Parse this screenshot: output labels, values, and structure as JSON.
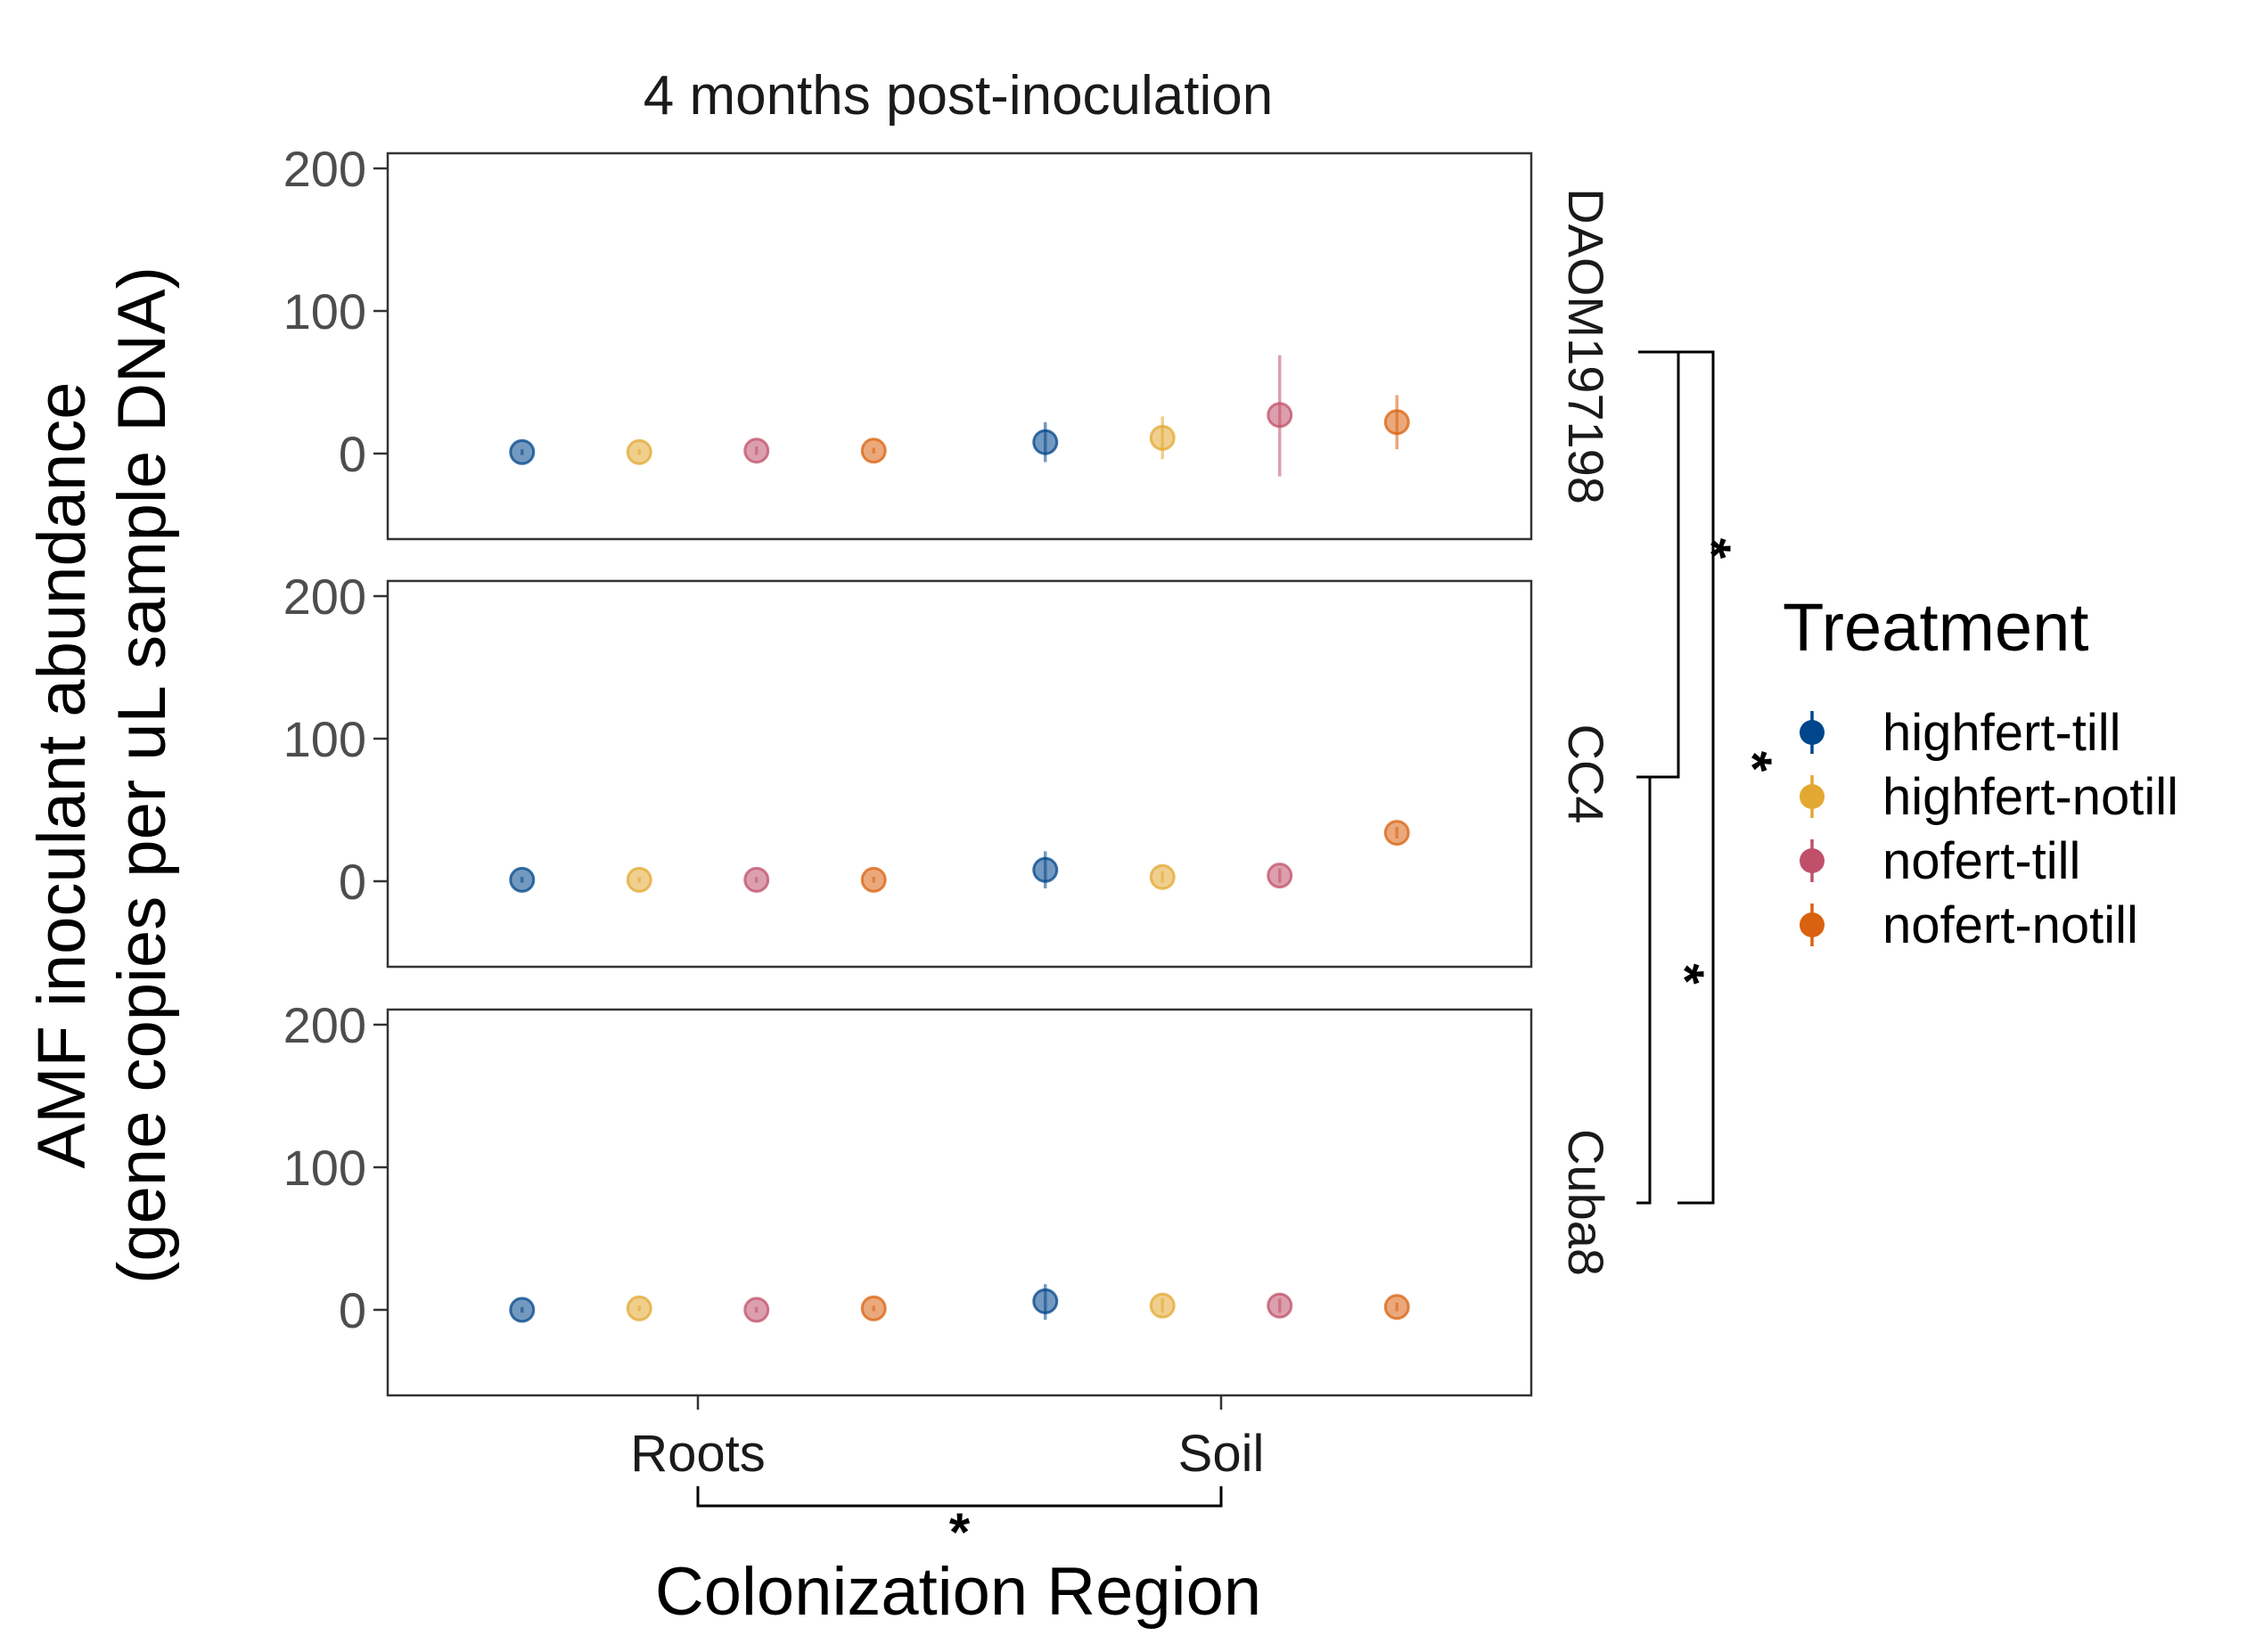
{
  "chart_data": {
    "type": "scatter",
    "title": "4 months post-inoculation",
    "xlabel": "Colonization Region",
    "ylabel_line1": "AMF inoculant abundance",
    "ylabel_line2": "(gene copies per uL sample DNA)",
    "categories": [
      "Roots",
      "Soil"
    ],
    "ylim": [
      -60,
      210
    ],
    "yticks": [
      "0",
      "100",
      "200"
    ],
    "legend": {
      "title": "Treatment",
      "placement": "right",
      "entries": [
        "highfert-till",
        "highfert-notill",
        "nofert-till",
        "nofert-notill"
      ]
    },
    "colors": {
      "highfert-till": "#00468b",
      "highfert-notill": "#e3a832",
      "nofert-till": "#c0506a",
      "nofert-notill": "#d9610f"
    },
    "panels": [
      {
        "strip": "DAOM197198",
        "points": [
          {
            "x": "Roots",
            "series": "highfert-till",
            "y": 1,
            "lo": -1,
            "hi": 3
          },
          {
            "x": "Roots",
            "series": "highfert-notill",
            "y": 1,
            "lo": -1,
            "hi": 3
          },
          {
            "x": "Roots",
            "series": "nofert-till",
            "y": 2,
            "lo": -1,
            "hi": 5
          },
          {
            "x": "Roots",
            "series": "nofert-notill",
            "y": 2,
            "lo": 0,
            "hi": 4
          },
          {
            "x": "Soil",
            "series": "highfert-till",
            "y": 8,
            "lo": -6,
            "hi": 22
          },
          {
            "x": "Soil",
            "series": "highfert-notill",
            "y": 11,
            "lo": -4,
            "hi": 26
          },
          {
            "x": "Soil",
            "series": "nofert-till",
            "y": 27,
            "lo": -16,
            "hi": 69
          },
          {
            "x": "Soil",
            "series": "nofert-notill",
            "y": 22,
            "lo": 3,
            "hi": 41
          }
        ]
      },
      {
        "strip": "CC4",
        "points": [
          {
            "x": "Roots",
            "series": "highfert-till",
            "y": 1,
            "lo": -1,
            "hi": 3
          },
          {
            "x": "Roots",
            "series": "highfert-notill",
            "y": 1,
            "lo": -1,
            "hi": 3
          },
          {
            "x": "Roots",
            "series": "nofert-till",
            "y": 1,
            "lo": -1,
            "hi": 3
          },
          {
            "x": "Roots",
            "series": "nofert-notill",
            "y": 1,
            "lo": -1,
            "hi": 3
          },
          {
            "x": "Soil",
            "series": "highfert-till",
            "y": 8,
            "lo": -5,
            "hi": 21
          },
          {
            "x": "Soil",
            "series": "highfert-notill",
            "y": 3,
            "lo": -1,
            "hi": 7
          },
          {
            "x": "Soil",
            "series": "nofert-till",
            "y": 4,
            "lo": -1,
            "hi": 9
          },
          {
            "x": "Soil",
            "series": "nofert-notill",
            "y": 34,
            "lo": 30,
            "hi": 38
          }
        ]
      },
      {
        "strip": "Cuba8",
        "points": [
          {
            "x": "Roots",
            "series": "highfert-till",
            "y": 0,
            "lo": -2,
            "hi": 2
          },
          {
            "x": "Roots",
            "series": "highfert-notill",
            "y": 1,
            "lo": -1,
            "hi": 3
          },
          {
            "x": "Roots",
            "series": "nofert-till",
            "y": 0,
            "lo": -2,
            "hi": 2
          },
          {
            "x": "Roots",
            "series": "nofert-notill",
            "y": 1,
            "lo": -1,
            "hi": 3
          },
          {
            "x": "Soil",
            "series": "highfert-till",
            "y": 6,
            "lo": -7,
            "hi": 18
          },
          {
            "x": "Soil",
            "series": "highfert-notill",
            "y": 3,
            "lo": -2,
            "hi": 8
          },
          {
            "x": "Soil",
            "series": "nofert-till",
            "y": 3,
            "lo": -2,
            "hi": 8
          },
          {
            "x": "Soil",
            "series": "nofert-notill",
            "y": 2,
            "lo": -1,
            "hi": 5
          }
        ]
      }
    ],
    "significance": {
      "x_bracket_label": "*",
      "strip_brackets": [
        {
          "from": "DAOM197198",
          "to": "CC4",
          "label": "*"
        },
        {
          "from": "CC4",
          "to": "Cuba8",
          "label": "*"
        },
        {
          "from": "DAOM197198",
          "to": "Cuba8",
          "label": "*"
        }
      ]
    }
  }
}
